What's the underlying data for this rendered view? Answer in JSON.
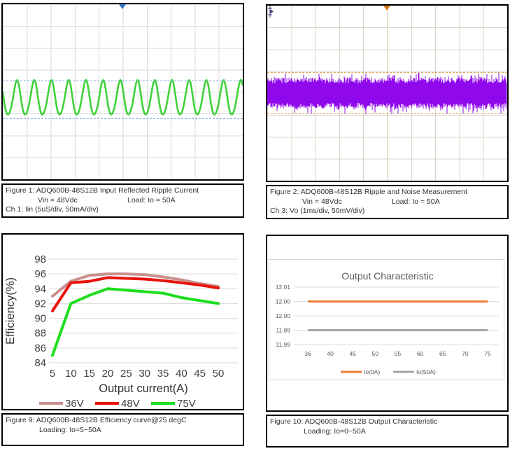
{
  "fig1": {
    "caption": {
      "line1": "Figure 1: ADQ600B-48S12B Input Reflected Ripple Current",
      "vin": "Vin = 48Vdc",
      "load": "Load: Io = 50A",
      "ch": "Ch 1: Iin (5uS/div, 50mA/div)"
    },
    "scope": {
      "type": "sine-ripple",
      "signal": "Iin",
      "time_per_div": "5uS/div",
      "scale_per_div": "50mA/div",
      "wave_color": "#41d23b",
      "cursor_color": "#7fa8d9",
      "trigger_color": "#2e74c9",
      "cycles_visible": 14,
      "ripple_amplitude_divisions": 1.6
    }
  },
  "fig2": {
    "caption": {
      "line1": "Figure 2: ADQ600B-48S12B Ripple and Noise Measurement",
      "vin": "Vin = 48Vdc",
      "load": "Load: Io = 50A",
      "ch": "Ch 3: Vo (1ms/div, 50mV/div)"
    },
    "scope": {
      "type": "noise-band",
      "signal": "Vo",
      "time_per_div": "1ms/div",
      "scale_per_div": "50mV/div",
      "wave_color": "#9008ec",
      "cursor_color": "#e2a55e",
      "trigger_color": "#e07b18",
      "channel_marker": "3",
      "band_height_divisions": 1.8
    }
  },
  "fig9": {
    "caption": {
      "line1": "Figure 9: ADQ600B-48S12B Efficiency curve@25 degC",
      "line2": "Loading: Io=5~50A"
    }
  },
  "fig10": {
    "caption": {
      "line1": "Figure 10: ADQ600B-48S12B Output Characteristic",
      "line2": "Loading: Io=0~50A"
    }
  },
  "chart_data": [
    {
      "id": "efficiency",
      "type": "line",
      "title": "",
      "xlabel": "Output current(A)",
      "ylabel": "Efficiency(%)",
      "x": [
        5,
        10,
        15,
        20,
        25,
        30,
        35,
        40,
        45,
        50
      ],
      "yticks": [
        84,
        86,
        88,
        90,
        92,
        94,
        96,
        98
      ],
      "ylim": [
        84,
        98
      ],
      "grid": true,
      "legend_position": "bottom",
      "series": [
        {
          "name": "36V",
          "color": "#C9908E",
          "values": [
            93.0,
            95.0,
            95.8,
            96.0,
            96.0,
            95.9,
            95.6,
            95.2,
            94.7,
            94.3
          ]
        },
        {
          "name": "48V",
          "color": "#E8130C",
          "values": [
            91.0,
            94.8,
            95.0,
            95.5,
            95.4,
            95.3,
            95.1,
            94.8,
            94.5,
            94.1
          ]
        },
        {
          "name": "75V",
          "color": "#1DDE1D",
          "values": [
            85.0,
            92.0,
            93.1,
            94.0,
            93.8,
            93.6,
            93.4,
            92.8,
            92.4,
            92.0
          ]
        }
      ]
    },
    {
      "id": "output-characteristic",
      "type": "line",
      "title": "Output Characteristic",
      "xlabel": "",
      "ylabel": "",
      "x": [
        36,
        40,
        45,
        50,
        55,
        60,
        65,
        70,
        75
      ],
      "ytick_labels": [
        "12.01",
        "12.00",
        "12.00",
        "11.99",
        "11.99"
      ],
      "ytick_values": [
        12.01,
        12.005,
        12.0,
        11.995,
        11.99
      ],
      "ylim": [
        11.99,
        12.01
      ],
      "grid": true,
      "legend_position": "bottom",
      "series": [
        {
          "name": "Io(0A)",
          "color": "#ED7D31",
          "values": [
            12.005,
            12.005,
            12.005,
            12.005,
            12.005,
            12.005,
            12.005,
            12.005,
            12.005
          ]
        },
        {
          "name": "Io(50A)",
          "color": "#A5A5A5",
          "values": [
            11.995,
            11.995,
            11.995,
            11.995,
            11.995,
            11.995,
            11.995,
            11.995,
            11.995
          ]
        }
      ]
    }
  ]
}
